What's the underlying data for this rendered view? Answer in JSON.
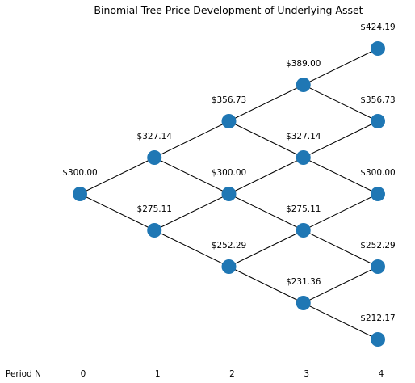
{
  "chart_data": {
    "type": "binomial-tree",
    "title": "Binomial Tree Price Development of Underlying Asset",
    "period_axis_label": "Period N",
    "periods": [
      "0",
      "1",
      "2",
      "3",
      "4"
    ],
    "node_color": "#1f77b4",
    "edge_color": "#000000",
    "nodes": [
      {
        "id": "n0_0",
        "period": 0,
        "value": 300.0,
        "label": "$300.00"
      },
      {
        "id": "n1_1",
        "period": 1,
        "value": 327.14,
        "label": "$327.14"
      },
      {
        "id": "n1_0",
        "period": 1,
        "value": 275.11,
        "label": "$275.11"
      },
      {
        "id": "n2_2",
        "period": 2,
        "value": 356.73,
        "label": "$356.73"
      },
      {
        "id": "n2_1",
        "period": 2,
        "value": 300.0,
        "label": "$300.00"
      },
      {
        "id": "n2_0",
        "period": 2,
        "value": 252.29,
        "label": "$252.29"
      },
      {
        "id": "n3_3",
        "period": 3,
        "value": 389.0,
        "label": "$389.00"
      },
      {
        "id": "n3_2",
        "period": 3,
        "value": 327.14,
        "label": "$327.14"
      },
      {
        "id": "n3_1",
        "period": 3,
        "value": 275.11,
        "label": "$275.11"
      },
      {
        "id": "n3_0",
        "period": 3,
        "value": 231.36,
        "label": "$231.36"
      },
      {
        "id": "n4_4",
        "period": 4,
        "value": 424.19,
        "label": "$424.19"
      },
      {
        "id": "n4_3",
        "period": 4,
        "value": 356.73,
        "label": "$356.73"
      },
      {
        "id": "n4_2",
        "period": 4,
        "value": 300.0,
        "label": "$300.00"
      },
      {
        "id": "n4_1",
        "period": 4,
        "value": 252.29,
        "label": "$252.29"
      },
      {
        "id": "n4_0",
        "period": 4,
        "value": 212.17,
        "label": "$212.17"
      }
    ],
    "edges": [
      [
        "n0_0",
        "n1_1"
      ],
      [
        "n0_0",
        "n1_0"
      ],
      [
        "n1_1",
        "n2_2"
      ],
      [
        "n1_1",
        "n2_1"
      ],
      [
        "n1_0",
        "n2_1"
      ],
      [
        "n1_0",
        "n2_0"
      ],
      [
        "n2_2",
        "n3_3"
      ],
      [
        "n2_2",
        "n3_2"
      ],
      [
        "n2_1",
        "n3_2"
      ],
      [
        "n2_1",
        "n3_1"
      ],
      [
        "n2_0",
        "n3_1"
      ],
      [
        "n2_0",
        "n3_0"
      ],
      [
        "n3_3",
        "n4_4"
      ],
      [
        "n3_3",
        "n4_3"
      ],
      [
        "n3_2",
        "n4_3"
      ],
      [
        "n3_2",
        "n4_2"
      ],
      [
        "n3_1",
        "n4_2"
      ],
      [
        "n3_1",
        "n4_1"
      ],
      [
        "n3_0",
        "n4_1"
      ],
      [
        "n3_0",
        "n4_0"
      ]
    ]
  }
}
